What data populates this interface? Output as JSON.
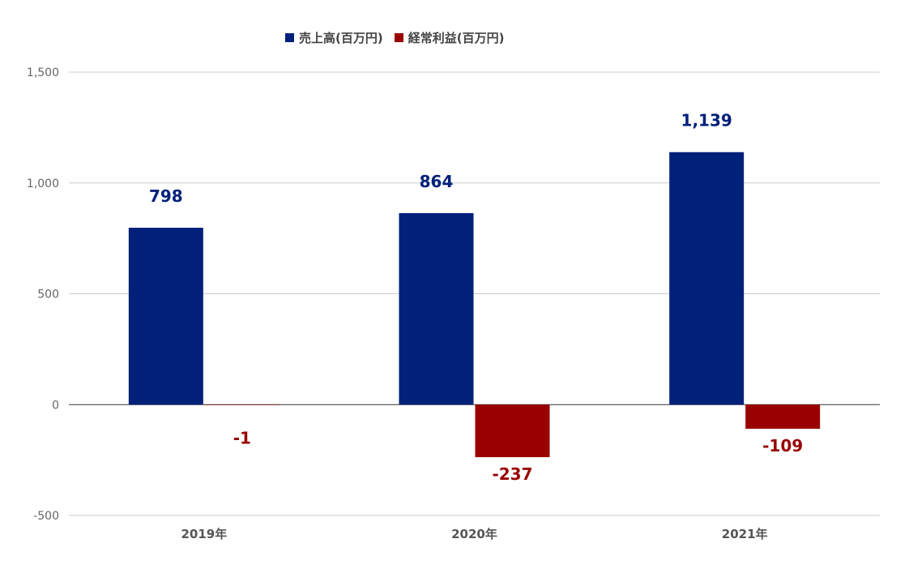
{
  "chart_data": {
    "type": "bar",
    "categories": [
      "2019年",
      "2020年",
      "2021年"
    ],
    "series": [
      {
        "name": "売上高(百万円)",
        "values": [
          798,
          864,
          1139
        ],
        "labels": [
          "798",
          "864",
          "1,139"
        ],
        "color": "#00207a"
      },
      {
        "name": "経常利益(百万円)",
        "values": [
          -1,
          -237,
          -109
        ],
        "labels": [
          "-1",
          "-237",
          "-109"
        ],
        "color": "#990000"
      }
    ],
    "title": "",
    "xlabel": "",
    "ylabel": "",
    "ylim": [
      -500,
      1500
    ],
    "yticks": [
      1500,
      1000,
      500,
      0,
      -500
    ],
    "ytick_labels": [
      "1,500",
      "1,000",
      "500",
      "0",
      "-500"
    ],
    "grid": true,
    "legend_position": "top-center"
  }
}
